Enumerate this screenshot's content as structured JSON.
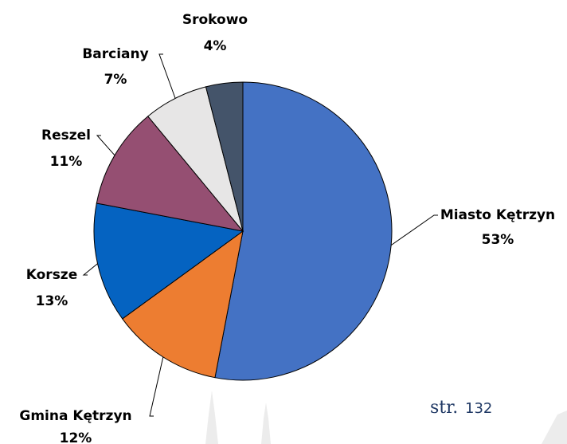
{
  "chart_data": {
    "type": "pie",
    "categories": [
      "Miasto Kętrzyn",
      "Gmina Kętrzyn",
      "Korsze",
      "Reszel",
      "Barciany",
      "Srokowo"
    ],
    "values": [
      53,
      12,
      13,
      11,
      7,
      4
    ],
    "value_labels": [
      "53%",
      "12%",
      "13%",
      "11%",
      "7%",
      "4%"
    ],
    "colors": [
      "#4472c4",
      "#ed7d31",
      "#0563c1",
      "#954f72",
      "#e7e6e6",
      "#44546a"
    ]
  },
  "footer": {
    "prefix": "str.",
    "number": "132"
  }
}
